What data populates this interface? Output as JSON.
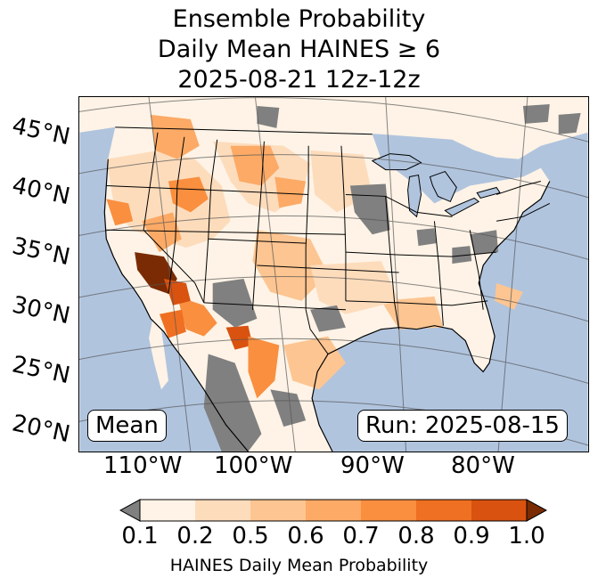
{
  "title": {
    "line1": "Ensemble Probability",
    "line2": "Daily Mean HAINES ≥ 6",
    "line3": "2025-08-21 12z-12z"
  },
  "latitude_labels": [
    "45°N",
    "40°N",
    "35°N",
    "30°N",
    "25°N",
    "20°N"
  ],
  "longitude_labels": [
    "110°W",
    "100°W",
    "90°W",
    "80°W"
  ],
  "mean_label": "Mean",
  "run_label": "Run: 2025-08-15",
  "colorbar": {
    "ticks": [
      "0.1",
      "0.2",
      "0.5",
      "0.6",
      "0.7",
      "0.8",
      "0.9",
      "1.0"
    ],
    "colors": [
      "#fef3e6",
      "#fddcbc",
      "#fdc591",
      "#fcaa66",
      "#f98f3f",
      "#ef7023",
      "#d95210"
    ],
    "under_color": "#808080",
    "over_color": "#7a2b04",
    "label": "HAINES Daily Mean Probability"
  },
  "map_colors": {
    "ocean": "#b0c4de",
    "land": "#fef3e6",
    "missing": "#808080",
    "borders": "#000000"
  }
}
